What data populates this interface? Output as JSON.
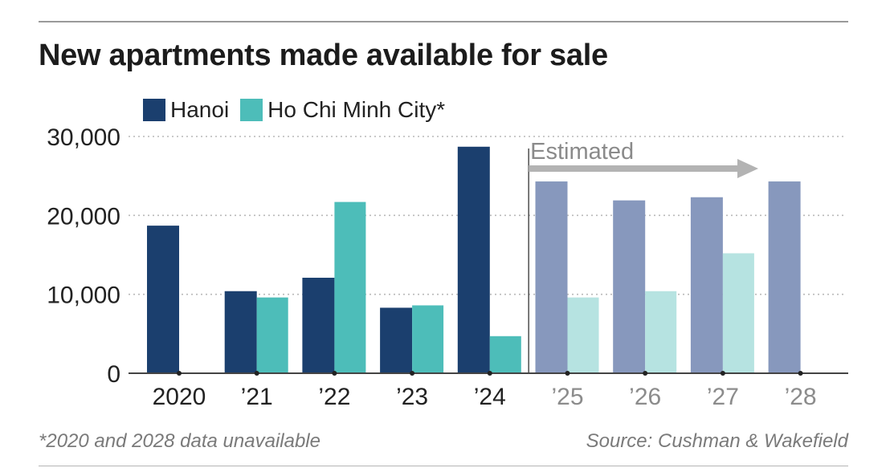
{
  "title": "New apartments made available for sale",
  "legend": [
    {
      "label": "Hanoi",
      "color": "#1b3f6e"
    },
    {
      "label": "Ho Chi Minh City*",
      "color": "#4dbdb9"
    }
  ],
  "footnote": "*2020 and 2028 data unavailable",
  "source": "Source: Cushman & Wakefield",
  "colors": {
    "hanoi": "#1b3f6e",
    "hcmc": "#4dbdb9",
    "hanoi_estimated": "#8798bd",
    "hcmc_estimated": "#b6e3e1",
    "arrow": "#b3b3b3",
    "grid": "#b9b9b9",
    "axis": "#444444"
  },
  "chart_data": {
    "type": "bar",
    "title": "New apartments made available for sale",
    "categories": [
      "2020",
      "’21",
      "’22",
      "’23",
      "’24",
      "’25",
      "’26",
      "’27",
      "’28"
    ],
    "series": [
      {
        "name": "Hanoi",
        "values": [
          18700,
          10400,
          12100,
          8300,
          28700,
          24300,
          21900,
          22300,
          24300
        ]
      },
      {
        "name": "Ho Chi Minh City*",
        "values": [
          null,
          9600,
          21700,
          8600,
          4700,
          9600,
          10400,
          15200,
          null
        ]
      }
    ],
    "estimated_from_index": 5,
    "estimated_label": "Estimated",
    "ylim": [
      0,
      30000
    ],
    "yticks": [
      0,
      10000,
      20000,
      30000
    ],
    "ytick_labels": [
      "0",
      "10,000",
      "20,000",
      "30,000"
    ],
    "xlabel": "",
    "ylabel": "",
    "grid": true,
    "legend_position": "top-left"
  }
}
